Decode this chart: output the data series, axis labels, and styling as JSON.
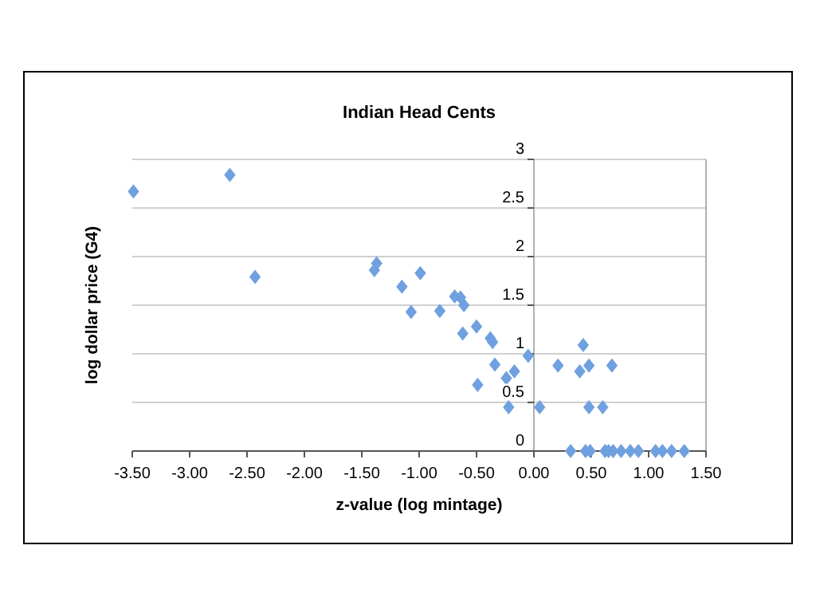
{
  "chart_data": {
    "type": "scatter",
    "title": "Indian Head Cents",
    "xlabel": "z-value (log mintage)",
    "ylabel": "log dollar price (G4)",
    "x": [
      -3.49,
      -2.65,
      -2.43,
      -1.39,
      -1.37,
      -1.15,
      -1.07,
      -0.99,
      -0.82,
      -0.69,
      -0.64,
      -0.61,
      -0.62,
      -0.5,
      -0.49,
      -0.38,
      -0.36,
      -0.34,
      -0.24,
      -0.22,
      -0.17,
      -0.05,
      0.05,
      0.21,
      0.32,
      0.4,
      0.43,
      0.45,
      0.48,
      0.48,
      0.49,
      0.6,
      0.62,
      0.65,
      0.68,
      0.69,
      0.76,
      0.84,
      0.91,
      1.06,
      1.12,
      1.2,
      1.31
    ],
    "series": [
      {
        "color": "#6fa0e0",
        "values": [
          2.67,
          2.84,
          1.79,
          1.86,
          1.93,
          1.69,
          1.43,
          1.83,
          1.44,
          1.59,
          1.58,
          1.5,
          1.21,
          1.28,
          0.68,
          1.16,
          1.12,
          0.89,
          0.75,
          0.45,
          0.82,
          0.98,
          0.45,
          0.88,
          0,
          0.82,
          1.09,
          0,
          0.88,
          0.45,
          0,
          0.45,
          0,
          0,
          0.88,
          0,
          0,
          0,
          0,
          0,
          0,
          0,
          0
        ]
      }
    ],
    "xlim": [
      -3.5,
      1.5
    ],
    "xticks": [
      {
        "value": -3.5,
        "label": "-3.50"
      },
      {
        "value": -3,
        "label": "-3.00"
      },
      {
        "value": -2.5,
        "label": "-2.50"
      },
      {
        "value": -2,
        "label": "-2.00"
      },
      {
        "value": -1.5,
        "label": "-1.50"
      },
      {
        "value": -1,
        "label": "-1.00"
      },
      {
        "value": -0.5,
        "label": "-0.50"
      },
      {
        "value": 0,
        "label": "0.00"
      },
      {
        "value": 0.5,
        "label": "0.50"
      },
      {
        "value": 1,
        "label": "1.00"
      },
      {
        "value": 1.5,
        "label": "1.50"
      }
    ],
    "ylim": [
      0,
      3
    ],
    "yticks": [
      0,
      0.5,
      1,
      1.5,
      2,
      2.5,
      3
    ],
    "grid": "y",
    "marker": "diamond"
  }
}
